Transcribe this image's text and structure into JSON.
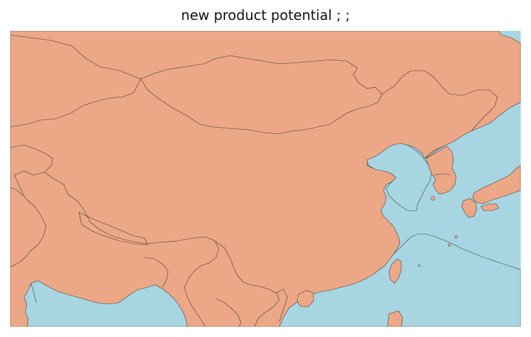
{
  "title": "new product potential ; ;",
  "colors": {
    "land": "#eca886",
    "ocean": "#a8d5e2",
    "border": "#333333",
    "background": "#ffffff",
    "title": "#111111"
  },
  "map": {
    "region": "East Asia",
    "projection": "equirectangular",
    "features": [
      "ocean",
      "land",
      "country-borders",
      "coastlines",
      "islands"
    ]
  }
}
